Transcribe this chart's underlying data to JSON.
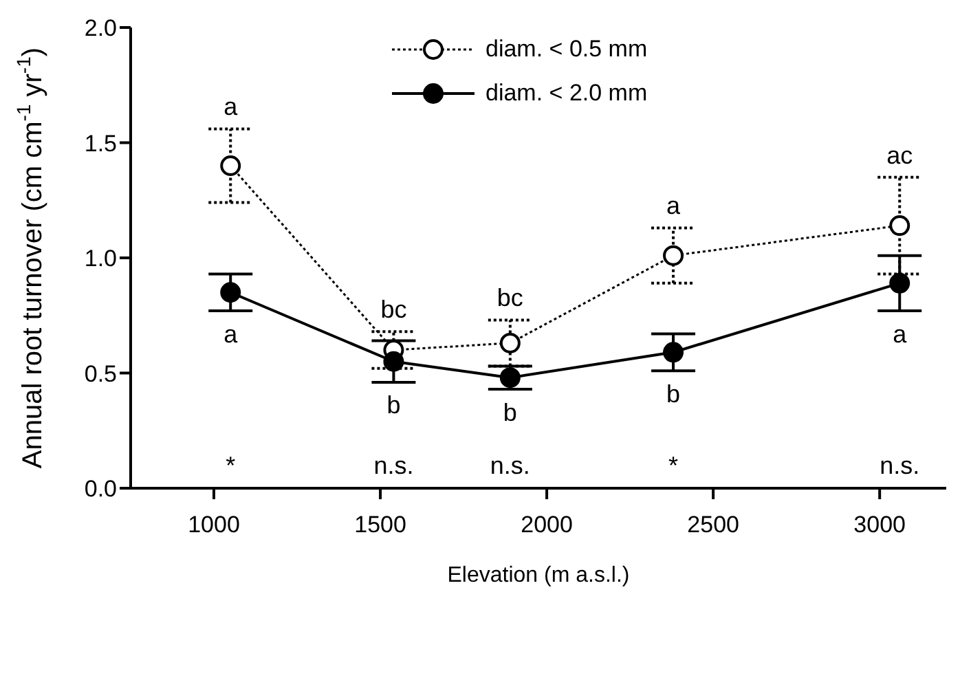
{
  "chart_data": {
    "type": "line",
    "xlabel": "Elevation (m a.s.l.)",
    "ylabel": "Annual root turnover (cm cm$^{-1}$ yr$^{-1}$)",
    "xlim": [
      750,
      3200
    ],
    "xticks": [
      1000,
      1500,
      2000,
      2500,
      3000
    ],
    "ylim": [
      0,
      2
    ],
    "yticks": [
      {
        "value": 0,
        "label": "0.0"
      },
      {
        "value": 0.5,
        "label": "0.5"
      },
      {
        "value": 1,
        "label": "1.0"
      },
      {
        "value": 1.5,
        "label": "1.5"
      },
      {
        "value": 2,
        "label": "2.0"
      }
    ],
    "grid": false,
    "legend": "top",
    "marker": "circle",
    "series": [
      {
        "name": "diam. < 0.5 mm",
        "color": "#000000",
        "line_style": "dotted",
        "x": [
          1050,
          1540,
          1890,
          2380,
          3060
        ],
        "values": [
          1.4,
          0.6,
          0.63,
          1.01,
          1.14
        ],
        "errors": [
          [
            1.24,
            1.56
          ],
          [
            0.52,
            0.68
          ],
          [
            0.53,
            0.73
          ],
          [
            0.89,
            1.13
          ],
          [
            0.93,
            1.35
          ]
        ]
      },
      {
        "name": "diam. < 2.0 mm",
        "color": "#000000",
        "line_style": "solid",
        "x": [
          1050,
          1540,
          1890,
          2380,
          3060
        ],
        "values": [
          0.85,
          0.55,
          0.48,
          0.59,
          0.89
        ],
        "errors": [
          [
            0.77,
            0.93
          ],
          [
            0.46,
            0.64
          ],
          [
            0.43,
            0.53
          ],
          [
            0.51,
            0.67
          ],
          [
            0.77,
            1.01
          ]
        ]
      }
    ],
    "annotations": [
      {
        "text": "a",
        "x": 1050,
        "y": 1.4
      },
      {
        "text": "a",
        "x": 1050,
        "y": 0.85
      },
      {
        "text": "bc",
        "x": 1540,
        "y": 0.6
      },
      {
        "text": "b",
        "x": 1540,
        "y": 0.55
      },
      {
        "text": "bc",
        "x": 1890,
        "y": 0.63
      },
      {
        "text": "b",
        "x": 1890,
        "y": 0.48
      },
      {
        "text": "a",
        "x": 2380,
        "y": 1.01
      },
      {
        "text": "b",
        "x": 2380,
        "y": 0.59
      },
      {
        "text": "ac",
        "x": 3060,
        "y": 1.14
      },
      {
        "text": "a",
        "x": 3060,
        "y": 0.89
      },
      "*",
      "n.s.",
      "n.s.",
      "*",
      "n.s."
    ]
  }
}
